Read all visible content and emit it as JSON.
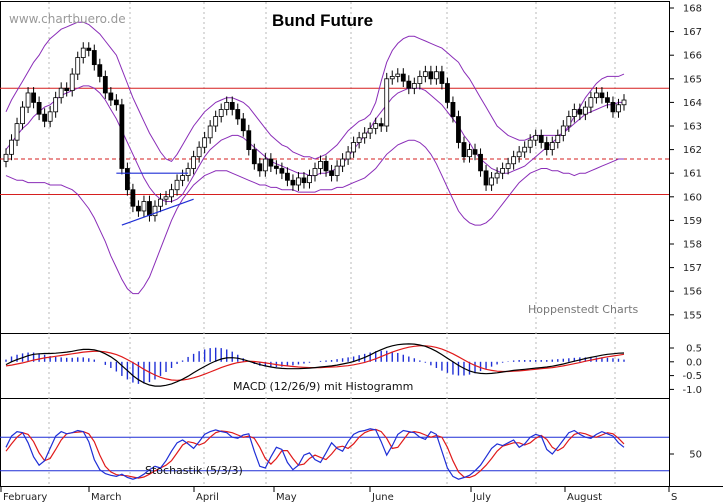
{
  "watermark": "www.chartbuero.de",
  "credit": "Hoppenstedt Charts",
  "colors": {
    "bollinger": "#8a2db8",
    "horizontal": "#d61f1f",
    "macd": "#000000",
    "signal": "#e01b1b",
    "histogram": "#1f2fd6",
    "stoch_k": "#1f2fd6",
    "stoch_d": "#e01b1b",
    "trend": "#1f2fd6"
  },
  "chart_data": [
    {
      "type": "candlestick",
      "title": "Bund Future",
      "ylim": [
        154.5,
        168.5
      ],
      "yticks": [
        "168",
        "167",
        "166",
        "165",
        "164",
        "163",
        "162",
        "161",
        "160",
        "159",
        "158",
        "157",
        "156",
        "155"
      ],
      "xticks": [
        "February",
        "March",
        "April",
        "May",
        "June",
        "July",
        "August",
        "S"
      ],
      "grid": "vertical dashed at month starts",
      "horizontal_lines": [
        {
          "value": 164.6,
          "style": "solid"
        },
        {
          "value": 161.6,
          "style": "dashed"
        },
        {
          "value": 160.1,
          "style": "solid"
        }
      ],
      "trendline": [
        {
          "t": 21,
          "value": 158.8
        },
        {
          "t": 34,
          "value": 159.9
        }
      ],
      "resistance_segment": [
        {
          "t": 20,
          "value": 161.0
        },
        {
          "t": 33,
          "value": 161.0
        }
      ],
      "close": [
        161.8,
        162.4,
        163.1,
        163.8,
        164.4,
        164.0,
        163.5,
        163.2,
        163.6,
        164.2,
        164.6,
        164.5,
        165.2,
        165.9,
        166.3,
        166.2,
        165.6,
        165.1,
        164.4,
        164.1,
        163.9,
        161.2,
        160.3,
        159.6,
        159.4,
        159.8,
        159.2,
        159.6,
        159.9,
        160.0,
        160.3,
        160.7,
        160.9,
        161.2,
        161.7,
        162.1,
        162.5,
        163.0,
        163.4,
        163.7,
        164.0,
        163.7,
        163.3,
        162.8,
        162.0,
        161.4,
        161.1,
        161.6,
        161.3,
        161.2,
        161.0,
        160.7,
        160.5,
        160.8,
        160.6,
        160.9,
        161.2,
        161.5,
        161.1,
        160.9,
        161.3,
        161.6,
        161.9,
        162.3,
        162.5,
        162.7,
        162.9,
        163.1,
        163.0,
        165.0,
        165.1,
        165.2,
        164.9,
        164.6,
        164.8,
        165.1,
        165.3,
        165.0,
        165.3,
        164.8,
        164.0,
        163.4,
        162.3,
        161.7,
        162.0,
        161.8,
        161.1,
        160.5,
        160.8,
        161.0,
        161.2,
        161.4,
        161.7,
        161.9,
        162.1,
        162.4,
        162.6,
        162.3,
        162.0,
        162.3,
        162.6,
        163.0,
        163.4,
        163.7,
        163.5,
        163.8,
        164.2,
        164.4,
        164.2,
        164.0,
        163.6,
        163.9,
        164.1
      ],
      "bollinger_upper": [
        163.6,
        164.1,
        164.5,
        164.9,
        165.3,
        165.7,
        166.0,
        166.4,
        166.7,
        166.9,
        167.1,
        167.2,
        167.3,
        167.4,
        167.4,
        167.3,
        167.1,
        166.9,
        166.6,
        166.3,
        166.0,
        165.4,
        164.8,
        164.2,
        163.7,
        163.2,
        162.7,
        162.3,
        161.9,
        161.6,
        161.5,
        161.8,
        162.2,
        162.6,
        163.0,
        163.3,
        163.6,
        163.8,
        164.0,
        164.1,
        164.2,
        164.2,
        164.1,
        164.0,
        163.8,
        163.5,
        163.2,
        162.9,
        162.6,
        162.4,
        162.2,
        162.1,
        161.9,
        161.8,
        161.7,
        161.7,
        161.6,
        161.7,
        161.8,
        162.0,
        162.2,
        162.5,
        162.8,
        163.0,
        163.2,
        163.3,
        163.5,
        164.0,
        164.9,
        165.7,
        166.2,
        166.5,
        166.7,
        166.8,
        166.8,
        166.7,
        166.6,
        166.5,
        166.4,
        166.3,
        166.1,
        165.9,
        165.7,
        165.3,
        165.0,
        164.6,
        164.2,
        163.8,
        163.4,
        163.0,
        162.8,
        162.6,
        162.5,
        162.4,
        162.4,
        162.5,
        162.6,
        162.6,
        162.6,
        162.6,
        162.6,
        162.7,
        163.0,
        163.4,
        163.8,
        164.2,
        164.5,
        164.8,
        165.0,
        165.1,
        165.1,
        165.1,
        165.2
      ],
      "bollinger_middle": [
        162.0,
        162.3,
        162.6,
        162.9,
        163.1,
        163.4,
        163.6,
        163.8,
        163.9,
        164.1,
        164.3,
        164.4,
        164.5,
        164.6,
        164.7,
        164.7,
        164.6,
        164.4,
        164.1,
        163.7,
        163.3,
        162.8,
        162.3,
        161.8,
        161.3,
        160.8,
        160.4,
        160.1,
        159.9,
        159.8,
        159.8,
        159.9,
        160.1,
        160.5,
        160.9,
        161.3,
        161.7,
        162.0,
        162.2,
        162.4,
        162.5,
        162.6,
        162.6,
        162.5,
        162.3,
        162.1,
        161.9,
        161.7,
        161.5,
        161.4,
        161.3,
        161.2,
        161.1,
        161.0,
        161.0,
        160.9,
        160.9,
        161.0,
        161.0,
        161.1,
        161.2,
        161.4,
        161.7,
        162.0,
        162.3,
        162.6,
        162.9,
        163.3,
        163.6,
        163.9,
        164.2,
        164.4,
        164.5,
        164.6,
        164.6,
        164.6,
        164.5,
        164.3,
        164.1,
        163.9,
        163.6,
        163.3,
        163.0,
        162.6,
        162.3,
        161.9,
        161.6,
        161.4,
        161.2,
        161.1,
        161.0,
        161.0,
        161.1,
        161.2,
        161.3,
        161.5,
        161.7,
        161.9,
        162.1,
        162.3,
        162.5,
        162.7,
        162.9,
        163.1,
        163.3,
        163.5,
        163.6,
        163.7,
        163.8,
        163.9,
        163.9,
        164.0,
        164.0
      ],
      "bollinger_lower": [
        160.9,
        160.8,
        160.7,
        160.7,
        160.6,
        160.6,
        160.6,
        160.6,
        160.5,
        160.5,
        160.5,
        160.4,
        160.3,
        160.1,
        159.8,
        159.5,
        159.1,
        158.6,
        158.1,
        157.5,
        157.0,
        156.5,
        156.1,
        155.9,
        155.9,
        156.2,
        156.6,
        157.2,
        157.8,
        158.4,
        159.0,
        159.5,
        159.9,
        160.2,
        160.5,
        160.7,
        160.9,
        161.0,
        161.1,
        161.1,
        161.1,
        161.0,
        160.9,
        160.8,
        160.7,
        160.6,
        160.5,
        160.5,
        160.4,
        160.4,
        160.3,
        160.3,
        160.3,
        160.2,
        160.2,
        160.2,
        160.2,
        160.3,
        160.3,
        160.3,
        160.4,
        160.4,
        160.5,
        160.6,
        160.7,
        160.8,
        161.0,
        161.2,
        161.5,
        161.8,
        162.0,
        162.2,
        162.3,
        162.4,
        162.4,
        162.3,
        162.1,
        161.8,
        161.4,
        160.9,
        160.4,
        159.9,
        159.4,
        159.1,
        158.9,
        158.8,
        158.8,
        158.9,
        159.1,
        159.4,
        159.7,
        160.0,
        160.3,
        160.6,
        160.8,
        161.0,
        161.1,
        161.2,
        161.2,
        161.1,
        161.1,
        161.0,
        161.0,
        160.9,
        161.0,
        161.0,
        161.1,
        161.2,
        161.3,
        161.4,
        161.5,
        161.6,
        161.6
      ]
    },
    {
      "type": "line",
      "label": "MACD (12/26/9) mit Histogramm",
      "ylim": [
        -1.45,
        0.8
      ],
      "yticks": [
        "0.5",
        "0.0",
        "-0.5",
        "-1.0"
      ],
      "macd": [
        -0.1,
        0.0,
        0.08,
        0.15,
        0.22,
        0.27,
        0.29,
        0.3,
        0.3,
        0.31,
        0.33,
        0.35,
        0.38,
        0.42,
        0.45,
        0.45,
        0.43,
        0.38,
        0.29,
        0.18,
        0.04,
        -0.14,
        -0.32,
        -0.5,
        -0.65,
        -0.76,
        -0.84,
        -0.88,
        -0.88,
        -0.85,
        -0.8,
        -0.72,
        -0.63,
        -0.52,
        -0.4,
        -0.28,
        -0.17,
        -0.06,
        0.03,
        0.1,
        0.14,
        0.15,
        0.13,
        0.08,
        0.02,
        -0.04,
        -0.1,
        -0.15,
        -0.19,
        -0.22,
        -0.24,
        -0.25,
        -0.25,
        -0.25,
        -0.24,
        -0.23,
        -0.21,
        -0.19,
        -0.17,
        -0.15,
        -0.12,
        -0.08,
        -0.04,
        0.01,
        0.08,
        0.16,
        0.25,
        0.35,
        0.44,
        0.52,
        0.58,
        0.62,
        0.64,
        0.65,
        0.64,
        0.61,
        0.56,
        0.48,
        0.38,
        0.26,
        0.13,
        0.0,
        -0.13,
        -0.24,
        -0.33,
        -0.39,
        -0.42,
        -0.43,
        -0.42,
        -0.4,
        -0.37,
        -0.34,
        -0.31,
        -0.29,
        -0.27,
        -0.25,
        -0.23,
        -0.21,
        -0.19,
        -0.16,
        -0.12,
        -0.08,
        -0.03,
        0.02,
        0.07,
        0.12,
        0.16,
        0.2,
        0.24,
        0.27,
        0.29,
        0.31,
        0.32
      ],
      "signal": [
        -0.15,
        -0.12,
        -0.08,
        -0.04,
        0.01,
        0.06,
        0.1,
        0.14,
        0.17,
        0.2,
        0.23,
        0.26,
        0.29,
        0.32,
        0.35,
        0.37,
        0.38,
        0.38,
        0.36,
        0.32,
        0.26,
        0.18,
        0.08,
        -0.03,
        -0.15,
        -0.27,
        -0.38,
        -0.48,
        -0.56,
        -0.62,
        -0.66,
        -0.67,
        -0.66,
        -0.63,
        -0.58,
        -0.52,
        -0.45,
        -0.37,
        -0.29,
        -0.21,
        -0.14,
        -0.08,
        -0.03,
        0.0,
        0.02,
        0.01,
        -0.01,
        -0.04,
        -0.07,
        -0.1,
        -0.13,
        -0.15,
        -0.17,
        -0.19,
        -0.2,
        -0.21,
        -0.21,
        -0.21,
        -0.2,
        -0.19,
        -0.18,
        -0.16,
        -0.14,
        -0.11,
        -0.07,
        -0.02,
        0.04,
        0.11,
        0.19,
        0.27,
        0.35,
        0.42,
        0.48,
        0.53,
        0.56,
        0.58,
        0.58,
        0.56,
        0.52,
        0.46,
        0.38,
        0.29,
        0.18,
        0.07,
        -0.04,
        -0.13,
        -0.21,
        -0.27,
        -0.31,
        -0.34,
        -0.35,
        -0.35,
        -0.34,
        -0.33,
        -0.31,
        -0.29,
        -0.27,
        -0.25,
        -0.23,
        -0.21,
        -0.18,
        -0.15,
        -0.11,
        -0.07,
        -0.03,
        0.02,
        0.06,
        0.1,
        0.14,
        0.18,
        0.21,
        0.24,
        0.27
      ]
    },
    {
      "type": "line",
      "label": "Stochastik (5/3/3)",
      "ylim": [
        0,
        100
      ],
      "yticks": [
        "50"
      ],
      "reference_lines": [
        80,
        20
      ],
      "k": [
        62,
        82,
        90,
        88,
        70,
        45,
        30,
        38,
        60,
        82,
        90,
        86,
        88,
        92,
        90,
        72,
        40,
        22,
        15,
        12,
        10,
        14,
        8,
        5,
        8,
        14,
        22,
        28,
        25,
        38,
        55,
        70,
        75,
        68,
        60,
        72,
        85,
        90,
        93,
        90,
        88,
        80,
        78,
        84,
        86,
        55,
        28,
        25,
        45,
        62,
        58,
        35,
        22,
        30,
        48,
        52,
        40,
        35,
        52,
        70,
        60,
        55,
        72,
        85,
        90,
        92,
        95,
        93,
        72,
        48,
        65,
        85,
        92,
        90,
        88,
        80,
        76,
        90,
        85,
        55,
        25,
        10,
        5,
        8,
        12,
        20,
        30,
        45,
        60,
        68,
        65,
        70,
        75,
        62,
        68,
        80,
        85,
        82,
        58,
        50,
        62,
        75,
        88,
        92,
        85,
        80,
        78,
        85,
        90,
        86,
        82,
        70,
        62
      ],
      "d": [
        55,
        68,
        80,
        88,
        85,
        72,
        52,
        38,
        42,
        58,
        75,
        86,
        88,
        89,
        90,
        86,
        72,
        48,
        28,
        18,
        13,
        12,
        11,
        9,
        7,
        9,
        14,
        20,
        25,
        30,
        38,
        52,
        66,
        72,
        70,
        66,
        70,
        80,
        88,
        91,
        90,
        88,
        84,
        80,
        82,
        78,
        62,
        42,
        32,
        42,
        56,
        56,
        42,
        30,
        32,
        42,
        48,
        44,
        40,
        50,
        62,
        64,
        60,
        68,
        80,
        88,
        92,
        94,
        90,
        78,
        60,
        62,
        75,
        88,
        90,
        88,
        84,
        80,
        83,
        80,
        62,
        38,
        18,
        9,
        8,
        12,
        20,
        30,
        42,
        55,
        64,
        67,
        70,
        70,
        66,
        70,
        78,
        83,
        76,
        62,
        56,
        62,
        75,
        85,
        88,
        86,
        82,
        80,
        84,
        88,
        86,
        78,
        68
      ]
    }
  ]
}
